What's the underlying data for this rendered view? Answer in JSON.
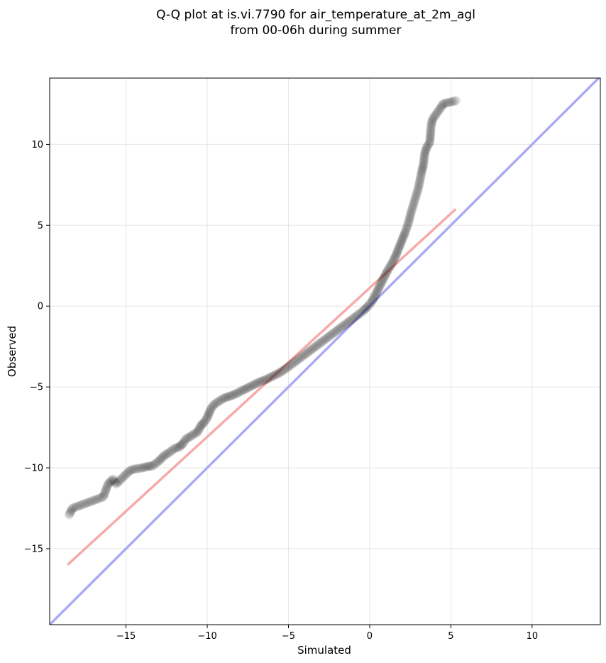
{
  "chart_data": {
    "type": "scatter",
    "title_lines": [
      "Q-Q plot at is.vi.7790 for air_temperature_at_2m_agl",
      "from 00-06h during summer"
    ],
    "xlabel": "Simulated",
    "ylabel": "Observed",
    "xlim": [
      -19.7,
      14.2
    ],
    "ylim": [
      -19.7,
      14.1
    ],
    "xticks": [
      -15,
      -10,
      -5,
      0,
      5,
      10
    ],
    "yticks": [
      -15,
      -10,
      -5,
      0,
      5,
      10
    ],
    "xtick_labels": [
      "−15",
      "−10",
      "−5",
      "0",
      "5",
      "10"
    ],
    "ytick_labels": [
      "−15",
      "−10",
      "−5",
      "0",
      "5",
      "10"
    ],
    "grid": true,
    "marker_color": "#000000",
    "marker_alpha": 0.12,
    "quantile_points": [
      [
        -18.5,
        -12.9
      ],
      [
        -18.3,
        -12.5
      ],
      [
        -16.4,
        -11.8
      ],
      [
        -16.1,
        -11.0
      ],
      [
        -15.8,
        -10.7
      ],
      [
        -15.6,
        -11.0
      ],
      [
        -14.8,
        -10.2
      ],
      [
        -14.6,
        -10.1
      ],
      [
        -14.0,
        -10.0
      ],
      [
        -13.6,
        -9.9
      ],
      [
        -13.4,
        -9.9
      ],
      [
        -13.0,
        -9.6
      ],
      [
        -12.6,
        -9.2
      ],
      [
        -12.4,
        -9.1
      ],
      [
        -12.0,
        -8.8
      ],
      [
        -11.7,
        -8.7
      ],
      [
        -11.5,
        -8.5
      ],
      [
        -11.3,
        -8.2
      ],
      [
        -11.1,
        -8.1
      ],
      [
        -10.8,
        -7.9
      ],
      [
        -10.6,
        -7.8
      ],
      [
        -10.4,
        -7.4
      ],
      [
        -10.2,
        -7.2
      ],
      [
        -10.0,
        -6.9
      ],
      [
        -9.8,
        -6.4
      ],
      [
        -9.6,
        -6.1
      ],
      [
        -9.3,
        -5.9
      ],
      [
        -9.0,
        -5.7
      ],
      [
        -8.7,
        -5.6
      ],
      [
        -8.4,
        -5.5
      ],
      [
        -8.0,
        -5.3
      ],
      [
        -7.6,
        -5.1
      ],
      [
        -7.2,
        -4.9
      ],
      [
        -6.8,
        -4.7
      ],
      [
        -6.4,
        -4.55
      ],
      [
        -6.0,
        -4.35
      ],
      [
        -5.6,
        -4.15
      ],
      [
        -5.2,
        -3.9
      ],
      [
        -4.8,
        -3.6
      ],
      [
        -4.4,
        -3.3
      ],
      [
        -4.0,
        -3.0
      ],
      [
        -3.6,
        -2.7
      ],
      [
        -3.2,
        -2.4
      ],
      [
        -2.8,
        -2.1
      ],
      [
        -2.4,
        -1.8
      ],
      [
        -2.0,
        -1.5
      ],
      [
        -1.6,
        -1.2
      ],
      [
        -1.2,
        -0.9
      ],
      [
        -0.8,
        -0.6
      ],
      [
        -0.4,
        -0.3
      ],
      [
        -0.1,
        0.0
      ],
      [
        0.15,
        0.3
      ],
      [
        0.35,
        0.7
      ],
      [
        0.6,
        1.2
      ],
      [
        0.85,
        1.7
      ],
      [
        1.1,
        2.2
      ],
      [
        1.35,
        2.6
      ],
      [
        1.6,
        3.1
      ],
      [
        1.8,
        3.6
      ],
      [
        2.0,
        4.1
      ],
      [
        2.2,
        4.6
      ],
      [
        2.4,
        5.2
      ],
      [
        2.55,
        5.8
      ],
      [
        2.7,
        6.3
      ],
      [
        2.85,
        6.8
      ],
      [
        3.0,
        7.3
      ],
      [
        3.1,
        7.8
      ],
      [
        3.2,
        8.3
      ],
      [
        3.3,
        8.7
      ],
      [
        3.4,
        9.5
      ],
      [
        3.55,
        9.9
      ],
      [
        3.7,
        10.1
      ],
      [
        3.75,
        10.8
      ],
      [
        3.8,
        11.3
      ],
      [
        3.9,
        11.6
      ],
      [
        4.4,
        12.3
      ],
      [
        4.5,
        12.5
      ],
      [
        5.3,
        12.7
      ]
    ],
    "identity_line": {
      "color": "#aaaaf7",
      "from": [
        -19.7,
        -19.7
      ],
      "to": [
        14.2,
        14.2
      ]
    },
    "fit_line": {
      "color": "#f7aaaa",
      "from": [
        -18.6,
        -16.0
      ],
      "to": [
        5.3,
        6.0
      ]
    }
  }
}
